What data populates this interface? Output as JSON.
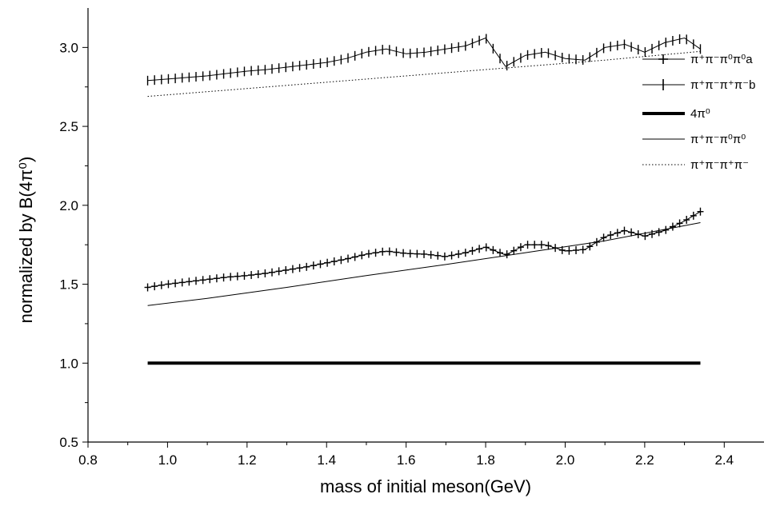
{
  "chart_data": {
    "type": "line",
    "xlabel": "mass of initial meson(GeV)",
    "ylabel": "normalized by B(4π⁰)",
    "xlim": [
      0.8,
      2.5
    ],
    "ylim": [
      0.5,
      3.25
    ],
    "x_ticks": [
      "0.8",
      "1.0",
      "1.2",
      "1.4",
      "1.6",
      "1.8",
      "2.0",
      "2.2",
      "2.4"
    ],
    "y_ticks": [
      "0.5",
      "1.0",
      "1.5",
      "2.0",
      "2.5",
      "3.0"
    ],
    "legend_position": "right",
    "series": [
      {
        "name": "π⁺π⁻π⁰π⁰a",
        "marker": "plus",
        "x": [
          0.95,
          1.0,
          1.05,
          1.1,
          1.15,
          1.2,
          1.25,
          1.3,
          1.35,
          1.4,
          1.45,
          1.5,
          1.55,
          1.6,
          1.65,
          1.7,
          1.75,
          1.8,
          1.85,
          1.9,
          1.95,
          2.0,
          2.05,
          2.1,
          2.15,
          2.2,
          2.25,
          2.3,
          2.34
        ],
        "y": [
          1.48,
          1.5,
          1.515,
          1.53,
          1.545,
          1.555,
          1.57,
          1.59,
          1.61,
          1.635,
          1.66,
          1.69,
          1.71,
          1.695,
          1.69,
          1.675,
          1.7,
          1.735,
          1.685,
          1.75,
          1.75,
          1.71,
          1.72,
          1.8,
          1.84,
          1.805,
          1.84,
          1.9,
          1.96
        ]
      },
      {
        "name": "π⁺π⁻π⁺π⁻b",
        "marker": "vbar",
        "x": [
          0.95,
          1.0,
          1.05,
          1.1,
          1.15,
          1.2,
          1.25,
          1.3,
          1.35,
          1.4,
          1.45,
          1.5,
          1.55,
          1.6,
          1.65,
          1.7,
          1.75,
          1.8,
          1.85,
          1.9,
          1.95,
          2.0,
          2.05,
          2.1,
          2.15,
          2.2,
          2.25,
          2.3,
          2.34
        ],
        "y": [
          2.79,
          2.8,
          2.81,
          2.82,
          2.835,
          2.85,
          2.86,
          2.875,
          2.89,
          2.905,
          2.93,
          2.97,
          2.99,
          2.96,
          2.97,
          2.99,
          3.01,
          3.06,
          2.88,
          2.95,
          2.97,
          2.93,
          2.92,
          3.0,
          3.02,
          2.97,
          3.03,
          3.06,
          2.99
        ]
      },
      {
        "name": "4π⁰",
        "style": "thick",
        "x": [
          0.95,
          2.34
        ],
        "y": [
          1.0,
          1.0
        ]
      },
      {
        "name": "π⁺π⁻π⁰π⁰",
        "style": "thin",
        "x": [
          0.95,
          1.1,
          1.3,
          1.5,
          1.7,
          1.9,
          2.1,
          2.34
        ],
        "y": [
          1.365,
          1.41,
          1.48,
          1.555,
          1.625,
          1.7,
          1.775,
          1.89
        ]
      },
      {
        "name": "π⁺π⁻π⁺π⁻",
        "style": "dotted",
        "x": [
          0.95,
          1.1,
          1.3,
          1.5,
          1.7,
          1.9,
          2.1,
          2.34
        ],
        "y": [
          2.69,
          2.72,
          2.76,
          2.8,
          2.84,
          2.88,
          2.92,
          2.975
        ]
      }
    ]
  },
  "legend": {
    "a": "π⁺π⁻π⁰π⁰a",
    "b": "π⁺π⁻π⁺π⁻b",
    "c": "4π⁰",
    "d": "π⁺π⁻π⁰π⁰",
    "e": "π⁺π⁻π⁺π⁻"
  }
}
